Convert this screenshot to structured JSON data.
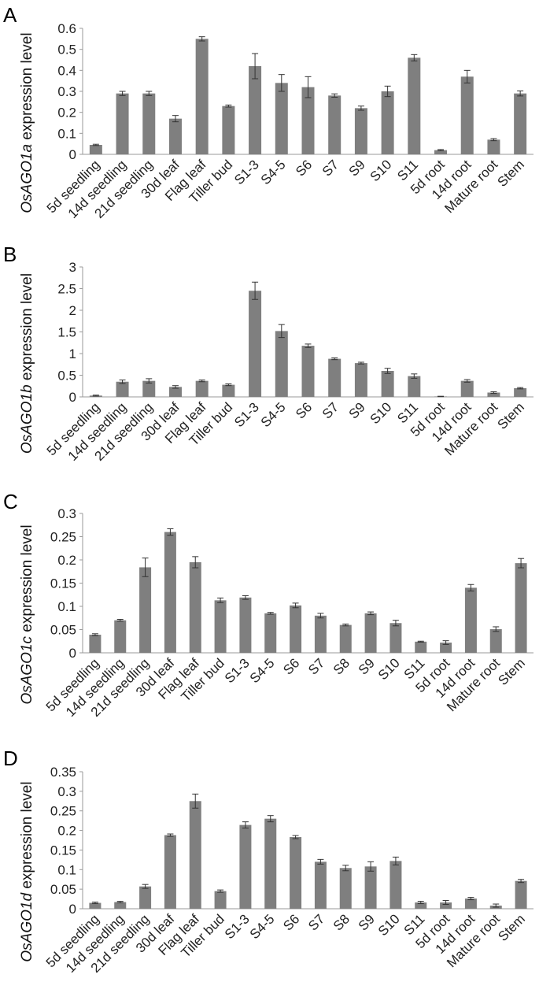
{
  "chart_data": [
    {
      "type": "bar",
      "panel_label": "A",
      "ylabel_italic": "OsAGO1a",
      "ylabel_rest": " expression level",
      "ylim": [
        0,
        0.6
      ],
      "yticks": [
        "0",
        "0.1",
        "0.2",
        "0.3",
        "0.4",
        "0.5",
        "0.6"
      ],
      "categories": [
        "5d seedling",
        "14d seedling",
        "21d seedling",
        "30d leaf",
        "Flag leaf",
        "Tiller bud",
        "S1-3",
        "S4-5",
        "S6",
        "S7",
        "S9",
        "S10",
        "S11",
        "5d root",
        "14d root",
        "Mature root",
        "Stem"
      ],
      "values": [
        0.045,
        0.29,
        0.29,
        0.17,
        0.55,
        0.23,
        0.42,
        0.34,
        0.32,
        0.28,
        0.22,
        0.3,
        0.46,
        0.02,
        0.37,
        0.07,
        0.29
      ],
      "errors": [
        0.003,
        0.01,
        0.01,
        0.015,
        0.01,
        0.005,
        0.06,
        0.04,
        0.05,
        0.008,
        0.01,
        0.025,
        0.015,
        0.003,
        0.03,
        0.005,
        0.012
      ],
      "bar_color": "#7f7f7f"
    },
    {
      "type": "bar",
      "panel_label": "B",
      "ylabel_italic": "OsAGO1b",
      "ylabel_rest": " expression level",
      "ylim": [
        0,
        3
      ],
      "yticks": [
        "0",
        "0.5",
        "1",
        "1.5",
        "2",
        "2.5",
        "3"
      ],
      "categories": [
        "5d seedling",
        "14d seedling",
        "21d seedling",
        "30d leaf",
        "Flag leaf",
        "Tiller bud",
        "S1-3",
        "S4-5",
        "S6",
        "S7",
        "S9",
        "S10",
        "S11",
        "5d root",
        "14d root",
        "Mature root",
        "Stem"
      ],
      "values": [
        0.03,
        0.35,
        0.37,
        0.23,
        0.37,
        0.28,
        2.45,
        1.52,
        1.18,
        0.88,
        0.78,
        0.6,
        0.48,
        0.01,
        0.37,
        0.1,
        0.2
      ],
      "errors": [
        0.01,
        0.04,
        0.05,
        0.03,
        0.02,
        0.02,
        0.2,
        0.15,
        0.04,
        0.02,
        0.02,
        0.06,
        0.05,
        0.005,
        0.03,
        0.02,
        0.015
      ],
      "bar_color": "#7f7f7f"
    },
    {
      "type": "bar",
      "panel_label": "C",
      "ylabel_italic": "OsAGO1c",
      "ylabel_rest": " expression level",
      "ylim": [
        0,
        0.3
      ],
      "yticks": [
        "0",
        "0.05",
        "0.1",
        "0.15",
        "0.2",
        "0.25",
        "0.3"
      ],
      "categories": [
        "5d seedling",
        "14d seedling",
        "21d seedling",
        "30d leaf",
        "Flag leaf",
        "Tiller bud",
        "S1-3",
        "S4-5",
        "S6",
        "S7",
        "S8",
        "S9",
        "S10",
        "S11",
        "5d root",
        "14d root",
        "Mature root",
        "Stem"
      ],
      "values": [
        0.039,
        0.07,
        0.184,
        0.26,
        0.195,
        0.113,
        0.119,
        0.085,
        0.102,
        0.08,
        0.06,
        0.085,
        0.064,
        0.024,
        0.022,
        0.14,
        0.051,
        0.193
      ],
      "errors": [
        0.002,
        0.002,
        0.02,
        0.007,
        0.012,
        0.005,
        0.004,
        0.002,
        0.005,
        0.005,
        0.002,
        0.003,
        0.006,
        0.001,
        0.004,
        0.007,
        0.005,
        0.01
      ],
      "bar_color": "#7f7f7f"
    },
    {
      "type": "bar",
      "panel_label": "D",
      "ylabel_italic": "OsAGO1d",
      "ylabel_rest": " expression level",
      "ylim": [
        0,
        0.35
      ],
      "yticks": [
        "0",
        "0.05",
        "0.1",
        "0.15",
        "0.2",
        "0.25",
        "0.3",
        "0.35"
      ],
      "categories": [
        "5d seedling",
        "14d seedling",
        "21d seedling",
        "30d leaf",
        "Flag leaf",
        "Tiller bud",
        "S1-3",
        "S4-5",
        "S6",
        "S7",
        "S8",
        "S9",
        "S10",
        "S11",
        "5d root",
        "14d root",
        "Mature root",
        "Stem"
      ],
      "values": [
        0.015,
        0.017,
        0.057,
        0.188,
        0.275,
        0.045,
        0.214,
        0.23,
        0.183,
        0.12,
        0.104,
        0.108,
        0.122,
        0.016,
        0.016,
        0.026,
        0.008,
        0.071
      ],
      "errors": [
        0.002,
        0.002,
        0.005,
        0.003,
        0.018,
        0.003,
        0.008,
        0.008,
        0.004,
        0.006,
        0.007,
        0.012,
        0.01,
        0.003,
        0.005,
        0.003,
        0.004,
        0.004
      ],
      "bar_color": "#7f7f7f"
    }
  ]
}
